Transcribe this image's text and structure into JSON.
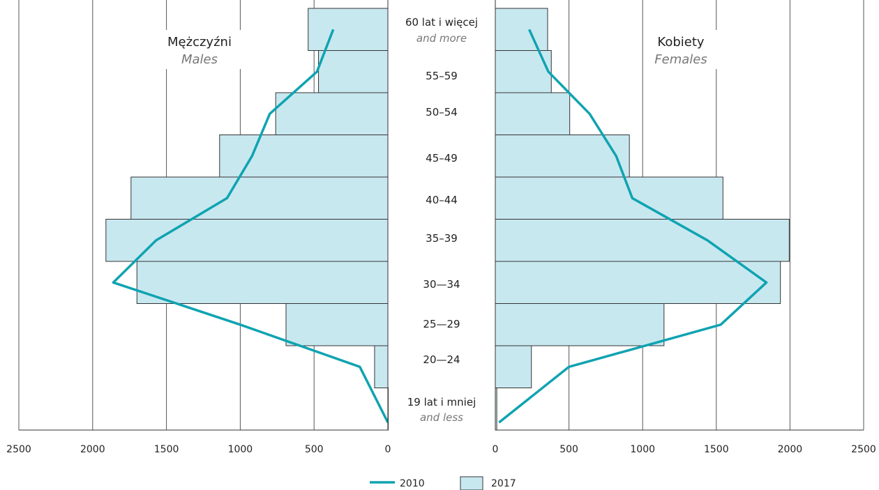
{
  "chart_data": {
    "type": "bar",
    "orientation": "horizontal-population-pyramid",
    "categories": [
      "19 lat i mniej",
      "20—24",
      "25—29",
      "30—34",
      "35–39",
      "40–44",
      "45–49",
      "50–54",
      "55–59",
      "60 lat i więcej"
    ],
    "categories_en": [
      "and less",
      "",
      "",
      "",
      "",
      "",
      "",
      "",
      "",
      "and more"
    ],
    "panels": [
      {
        "side": "left",
        "title": "Mężczyźni",
        "title_en": "Males",
        "series": [
          {
            "name": "2017",
            "type": "bar",
            "values": [
              0,
              90,
              690,
              1700,
              1910,
              1740,
              1140,
              760,
              470,
              540
            ]
          },
          {
            "name": "2010",
            "type": "line",
            "values": [
              0,
              190,
              1000,
              1860,
              1570,
              1090,
              920,
              800,
              480,
              370
            ]
          }
        ]
      },
      {
        "side": "right",
        "title": "Kobiety",
        "title_en": "Females",
        "series": [
          {
            "name": "2017",
            "type": "bar",
            "values": [
              10,
              245,
              1145,
              1935,
              1995,
              1545,
              910,
              505,
              380,
              355
            ]
          },
          {
            "name": "2010",
            "type": "line",
            "values": [
              25,
              500,
              1530,
              1840,
              1440,
              930,
              820,
              640,
              360,
              230
            ]
          }
        ]
      }
    ],
    "xlim": [
      0,
      2500
    ],
    "xticks": [
      "0",
      "500",
      "1000",
      "1500",
      "2000",
      "2500"
    ],
    "legend": [
      {
        "label": "2010",
        "kind": "line"
      },
      {
        "label": "2017",
        "kind": "box"
      }
    ],
    "legend_position": "bottom-center",
    "grid": true,
    "colors": {
      "bar_fill": "#c8e8f0",
      "bar_stroke": "#333333",
      "line": "#0fa3b1",
      "grid": "#555555"
    }
  }
}
